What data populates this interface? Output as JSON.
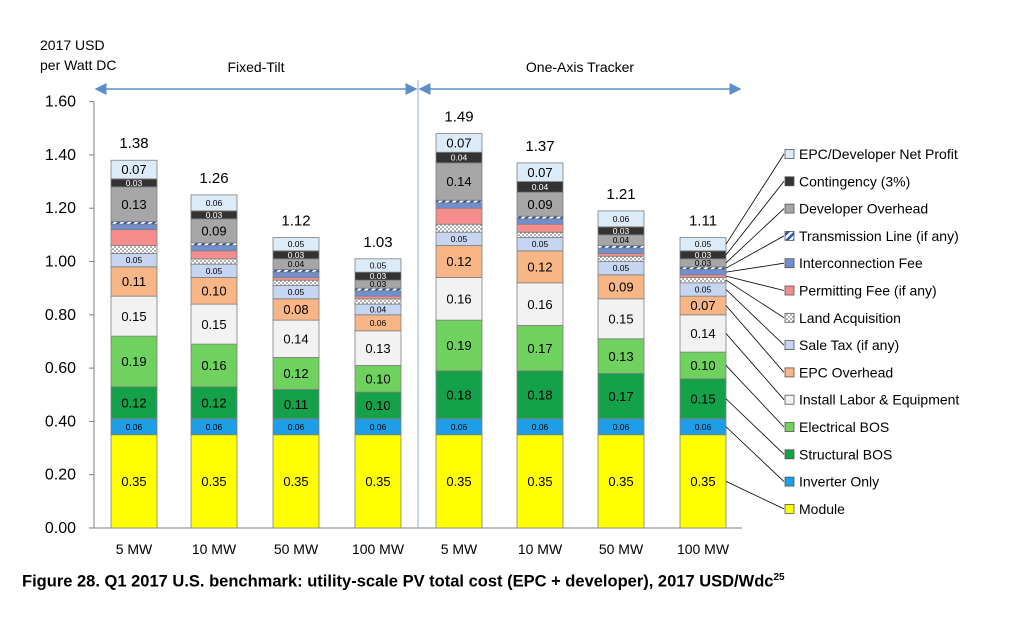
{
  "chart_data": {
    "type": "stacked-bar",
    "ylabel_line1": "2017 USD",
    "ylabel_line2": "per Watt DC",
    "ylim": [
      0,
      1.6
    ],
    "yticks": [
      "0.00",
      "0.20",
      "0.40",
      "0.60",
      "0.80",
      "1.00",
      "1.20",
      "1.40",
      "1.60"
    ],
    "groups": [
      {
        "label": "Fixed-Tilt",
        "categories": [
          "5 MW",
          "10 MW",
          "50 MW",
          "100 MW"
        ]
      },
      {
        "label": "One-Axis Tracker",
        "categories": [
          "5 MW",
          "10 MW",
          "50 MW",
          "100 MW"
        ]
      }
    ],
    "categories": [
      "5 MW",
      "10 MW",
      "50 MW",
      "100 MW",
      "5 MW",
      "10 MW",
      "50 MW",
      "100 MW"
    ],
    "totals": [
      "1.38",
      "1.26",
      "1.12",
      "1.03",
      "1.49",
      "1.37",
      "1.21",
      "1.11"
    ],
    "series": [
      {
        "name": "Module",
        "color": "#ffff00",
        "values": [
          0.35,
          0.35,
          0.35,
          0.35,
          0.35,
          0.35,
          0.35,
          0.35
        ],
        "labels": [
          "0.35",
          "0.35",
          "0.35",
          "0.35",
          "0.35",
          "0.35",
          "0.35",
          "0.35"
        ]
      },
      {
        "name": "Inverter Only",
        "color": "#1e9ee6",
        "values": [
          0.06,
          0.06,
          0.06,
          0.06,
          0.06,
          0.06,
          0.06,
          0.06
        ],
        "labels": [
          "0.06",
          "0.06",
          "0.06",
          "0.06",
          "0.06",
          "0.06",
          "0.06",
          "0.06"
        ]
      },
      {
        "name": "Structural BOS",
        "color": "#14a14a",
        "values": [
          0.12,
          0.12,
          0.11,
          0.1,
          0.18,
          0.18,
          0.17,
          0.15
        ],
        "labels": [
          "0.12",
          "0.12",
          "0.11",
          "0.10",
          "0.18",
          "0.18",
          "0.17",
          "0.15"
        ]
      },
      {
        "name": "Electrical BOS",
        "color": "#6fd25e",
        "values": [
          0.19,
          0.16,
          0.12,
          0.1,
          0.19,
          0.17,
          0.13,
          0.1
        ],
        "labels": [
          "0.19",
          "0.16",
          "0.12",
          "0.10",
          "0.19",
          "0.17",
          "0.13",
          "0.10"
        ]
      },
      {
        "name": "Install Labor & Equipment",
        "color": "#f2f2f2",
        "values": [
          0.15,
          0.15,
          0.14,
          0.13,
          0.16,
          0.16,
          0.15,
          0.14
        ],
        "labels": [
          "0.15",
          "0.15",
          "0.14",
          "0.13",
          "0.16",
          "0.16",
          "0.15",
          "0.14"
        ]
      },
      {
        "name": "EPC Overhead",
        "color": "#f8b585",
        "values": [
          0.11,
          0.1,
          0.08,
          0.06,
          0.12,
          0.12,
          0.09,
          0.07
        ],
        "labels": [
          "0.11",
          "0.10",
          "0.08",
          "0.06",
          "0.12",
          "0.12",
          "0.09",
          "0.07"
        ]
      },
      {
        "name": "Sale Tax (if any)",
        "color": "#c6d6f2",
        "values": [
          0.05,
          0.05,
          0.05,
          0.04,
          0.05,
          0.05,
          0.05,
          0.05
        ],
        "labels": [
          "0.05",
          "0.05",
          "0.05",
          "0.04",
          "0.05",
          "0.05",
          "0.05",
          "0.05"
        ]
      },
      {
        "name": "Land Acquisition",
        "color": "#e8e8e8",
        "pattern": "dots",
        "values": [
          0.03,
          0.02,
          0.02,
          0.02,
          0.03,
          0.02,
          0.02,
          0.02
        ],
        "labels": [
          "",
          "",
          "",
          "",
          "",
          "",
          "",
          ""
        ]
      },
      {
        "name": "Permitting Fee (if any)",
        "color": "#f58d8d",
        "values": [
          0.06,
          0.03,
          0.01,
          0.01,
          0.06,
          0.03,
          0.01,
          0.01
        ],
        "labels": [
          "",
          "",
          "",
          "",
          "",
          "",
          "",
          ""
        ]
      },
      {
        "name": "Interconnection Fee",
        "color": "#6f8fd0",
        "values": [
          0.02,
          0.02,
          0.02,
          0.02,
          0.02,
          0.02,
          0.02,
          0.02
        ],
        "labels": [
          "",
          "",
          "",
          "",
          "",
          "",
          "",
          ""
        ]
      },
      {
        "name": "Transmission Line (if any)",
        "color": "#9ab1e0",
        "pattern": "stripes",
        "values": [
          0.01,
          0.01,
          0.01,
          0.01,
          0.01,
          0.01,
          0.01,
          0.01
        ],
        "labels": [
          "",
          "",
          "",
          "",
          "",
          "",
          "",
          ""
        ]
      },
      {
        "name": "Developer Overhead",
        "color": "#a6a6a6",
        "values": [
          0.13,
          0.09,
          0.04,
          0.03,
          0.14,
          0.09,
          0.04,
          0.03
        ],
        "labels": [
          "0.13",
          "0.09",
          "0.04",
          "0.03",
          "0.14",
          "0.09",
          "0.04",
          "0.03"
        ]
      },
      {
        "name": "Contingency (3%)",
        "color": "#333333",
        "values": [
          0.03,
          0.03,
          0.03,
          0.03,
          0.04,
          0.04,
          0.03,
          0.03
        ],
        "labels": [
          "0.03",
          "0.03",
          "0.03",
          "0.03",
          "0.04",
          "0.04",
          "0.03",
          "0.03"
        ]
      },
      {
        "name": "EPC/Developer Net Profit",
        "color": "#dcebf8",
        "values": [
          0.07,
          0.06,
          0.05,
          0.05,
          0.07,
          0.07,
          0.06,
          0.05
        ],
        "labels": [
          "0.07",
          "0.06",
          "0.05",
          "0.05",
          "0.07",
          "0.07",
          "0.06",
          "0.05"
        ]
      }
    ],
    "legend_order": [
      "EPC/Developer Net Profit",
      "Contingency (3%)",
      "Developer Overhead",
      "Transmission Line (if any)",
      "Interconnection Fee",
      "Permitting Fee (if any)",
      "Land Acquisition",
      "Sale Tax (if any)",
      "EPC Overhead",
      "Install Labor & Equipment",
      "Electrical BOS",
      "Structural BOS",
      "Inverter Only",
      "Module"
    ],
    "legend_placement": "right",
    "grid": false
  },
  "caption": {
    "text": "Figure 28. Q1 2017 U.S. benchmark: utility-scale PV total cost (EPC + developer), 2017 USD/Wdc",
    "superscript": "25"
  }
}
